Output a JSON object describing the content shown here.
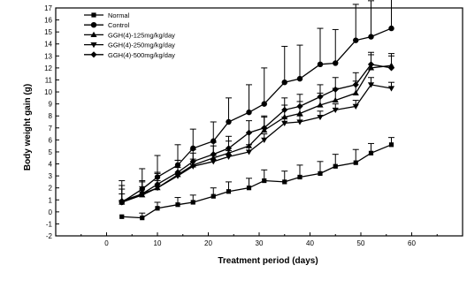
{
  "chart_data": {
    "type": "line",
    "title": "",
    "xlabel": "Treatment period (days)",
    "ylabel": "Body weight gain (g)",
    "xlim": [
      -10,
      70
    ],
    "ylim": [
      -2,
      17
    ],
    "xticks": [
      0,
      10,
      20,
      30,
      40,
      50,
      60
    ],
    "yticks": [
      -2,
      -1,
      0,
      1,
      2,
      3,
      4,
      5,
      6,
      7,
      8,
      9,
      10,
      11,
      12,
      13,
      14,
      15,
      16,
      17
    ],
    "grid": false,
    "legend_position": "top-left",
    "x": [
      3,
      7,
      10,
      14,
      17,
      21,
      24,
      28,
      31,
      35,
      38,
      42,
      45,
      49,
      52,
      56
    ],
    "series": [
      {
        "name": "Normal",
        "marker": "square",
        "values": [
          -0.4,
          -0.5,
          0.3,
          0.6,
          0.8,
          1.3,
          1.7,
          2.0,
          2.6,
          2.5,
          2.9,
          3.2,
          3.8,
          4.1,
          4.9,
          5.6
        ],
        "errors": [
          0.0,
          0.4,
          0.5,
          0.6,
          0.6,
          0.7,
          0.8,
          0.8,
          0.9,
          0.9,
          1.0,
          1.0,
          1.0,
          1.1,
          0.8,
          0.6
        ]
      },
      {
        "name": "Control",
        "marker": "circle",
        "values": [
          0.8,
          1.9,
          2.9,
          3.9,
          5.3,
          5.9,
          7.5,
          8.3,
          9.0,
          10.8,
          11.1,
          12.3,
          12.4,
          14.3,
          14.6,
          15.3
        ],
        "errors": [
          1.8,
          1.7,
          1.8,
          1.7,
          1.6,
          1.6,
          2.0,
          2.3,
          3.0,
          3.0,
          2.8,
          3.0,
          2.8,
          3.0,
          3.0,
          3.0
        ]
      },
      {
        "name": "GGH(4)-125mg/kg/day",
        "marker": "triangle-up",
        "values": [
          0.8,
          1.4,
          2.0,
          3.1,
          3.9,
          4.5,
          4.9,
          5.5,
          6.8,
          7.9,
          8.2,
          8.9,
          9.3,
          9.9,
          12.0,
          12.2
        ],
        "errors": [
          1.4,
          1.2,
          1.2,
          1.2,
          1.0,
          1.0,
          1.0,
          1.1,
          1.1,
          1.0,
          1.0,
          1.0,
          1.0,
          1.0,
          1.1,
          1.0
        ]
      },
      {
        "name": "GGH(4)-250mg/kg/day",
        "marker": "triangle-down",
        "values": [
          0.8,
          1.5,
          2.0,
          3.0,
          3.8,
          4.2,
          4.6,
          5.0,
          6.0,
          7.4,
          7.5,
          7.9,
          8.5,
          8.8,
          10.6,
          10.3
        ],
        "errors": [
          0.7,
          0.6,
          0.6,
          0.7,
          0.6,
          0.5,
          0.5,
          0.6,
          0.5,
          0.5,
          0.5,
          0.5,
          0.5,
          0.5,
          0.6,
          0.5
        ]
      },
      {
        "name": "GGH(4)-500mg/kg/day",
        "marker": "diamond",
        "values": [
          0.9,
          1.5,
          2.3,
          3.3,
          4.2,
          4.8,
          5.3,
          6.6,
          7.0,
          8.5,
          8.8,
          9.6,
          10.2,
          10.6,
          12.3,
          12.0
        ],
        "errors": [
          1.0,
          1.0,
          1.0,
          1.0,
          1.0,
          1.0,
          1.0,
          1.0,
          1.0,
          1.0,
          1.0,
          1.0,
          1.0,
          1.0,
          1.0,
          1.0
        ]
      }
    ]
  }
}
